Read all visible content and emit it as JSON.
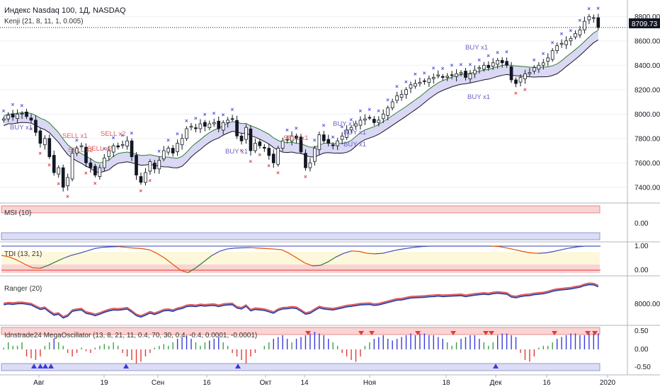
{
  "chart_data": [
    {
      "type": "candlestick",
      "title": "Индекс Nasdaq 100, 1Д, NASDAQ",
      "indicator_label": "Kenji (21, 8, 11, 1, 0.005)",
      "last_price": "8709.73",
      "y_ticks": [
        "8800.00",
        "8600.00",
        "8400.00",
        "8200.00",
        "8000.00",
        "7800.00",
        "7600.00",
        "7400.00"
      ],
      "y_tick_values": [
        8800,
        8600,
        8400,
        8200,
        8000,
        7800,
        7600,
        7400
      ],
      "ylim": [
        7300,
        8900
      ],
      "close": [
        7960,
        7990,
        7975,
        8000,
        8005,
        7980,
        7950,
        7850,
        7760,
        7800,
        7650,
        7520,
        7560,
        7400,
        7480,
        7680,
        7720,
        7740,
        7600,
        7560,
        7500,
        7560,
        7640,
        7700,
        7740,
        7730,
        7750,
        7780,
        7650,
        7500,
        7440,
        7520,
        7610,
        7550,
        7620,
        7700,
        7720,
        7680,
        7760,
        7800,
        7880,
        7900,
        7880,
        7920,
        7900,
        7920,
        7930,
        7880,
        7930,
        7950,
        7960,
        7820,
        7780,
        7890,
        7700,
        7760,
        7740,
        7720,
        7660,
        7600,
        7720,
        7780,
        7790,
        7820,
        7800,
        7690,
        7560,
        7600,
        7720,
        7830,
        7780,
        7760,
        7740,
        7780,
        7820,
        7870,
        7890,
        7920,
        7950,
        7960,
        7970,
        7930,
        7950,
        8000,
        8050,
        8100,
        8150,
        8160,
        8200,
        8240,
        8250,
        8260,
        8270,
        8290,
        8300,
        8320,
        8300,
        8310,
        8320,
        8330,
        8340,
        8300,
        8330,
        8360,
        8380,
        8400,
        8380,
        8420,
        8440,
        8420,
        8400,
        8280,
        8250,
        8300,
        8330,
        8340,
        8380,
        8400,
        8420,
        8460,
        8520,
        8560,
        8580,
        8600,
        8620,
        8660,
        8690,
        8760,
        8800,
        8790,
        8709.73
      ],
      "annotations": [
        "SELL x1",
        "SELL x2",
        "SELL x2",
        "SELL x2",
        "SELL x1",
        "BUY x1",
        "BUY x1",
        "BUY x1",
        "BUY x1",
        "BUY x1",
        "BUY x1",
        "BUY x1"
      ]
    },
    {
      "type": "line",
      "title": "MSI (10)",
      "y_ticks": [
        "0.00"
      ]
    },
    {
      "type": "line",
      "title": "TDI (13, 21)",
      "y_ticks": [
        "1.00",
        "0.00"
      ],
      "values": [
        0.62,
        0.55,
        0.42,
        0.25,
        0.1,
        0.08,
        0.2,
        0.35,
        0.5,
        0.62,
        0.7,
        0.8,
        0.9,
        0.95,
        0.97,
        0.98,
        0.95,
        0.92,
        0.9,
        0.85,
        0.7,
        0.5,
        0.25,
        0.0,
        -0.1,
        0.1,
        0.35,
        0.6,
        0.78,
        0.88,
        0.92,
        0.93,
        0.94,
        0.92,
        0.9,
        0.88,
        0.85,
        0.7,
        0.5,
        0.3,
        0.18,
        0.2,
        0.35,
        0.55,
        0.7,
        0.8,
        0.78,
        0.7,
        0.68,
        0.7,
        0.78,
        0.85,
        0.9,
        0.95,
        0.98,
        1.0,
        1.0,
        1.0,
        1.0,
        1.0,
        1.0,
        1.0,
        1.0,
        1.0,
        0.98,
        0.92,
        0.85,
        0.78,
        0.72,
        0.7,
        0.72,
        0.78,
        0.85,
        0.92,
        0.97,
        1.0,
        1.0,
        1.0
      ]
    },
    {
      "type": "line",
      "title": "Ranger (20)",
      "y_ticks": [
        "8000.00"
      ]
    },
    {
      "type": "bar",
      "title": "Idnstrade24 MegaOscillator (13, 8, 21, 11, 0.4, 70, 30, 0.4, -0.4, 0.0001, -0.0001)",
      "y_ticks": [
        "0.50",
        "0.00",
        "-0.50"
      ],
      "values": [
        0.05,
        0.2,
        0.1,
        0.1,
        0.2,
        -0.2,
        -0.25,
        -0.3,
        -0.2,
        0.1,
        0.2,
        0.3,
        0.2,
        0.1,
        -0.1,
        -0.2,
        -0.1,
        0.05,
        -0.05,
        -0.1,
        0.05,
        0.1,
        0.15,
        0.1,
        0.2,
        0.1,
        -0.1,
        -0.2,
        -0.3,
        -0.4,
        -0.35,
        -0.2,
        -0.1,
        0.05,
        0.1,
        0.15,
        0.1,
        0.2,
        0.3,
        0.35,
        0.4,
        0.3,
        0.2,
        0.1,
        0.2,
        0.25,
        0.3,
        0.35,
        0.2,
        0.1,
        -0.1,
        -0.2,
        -0.3,
        -0.4,
        -0.2,
        -0.1,
        0.0,
        0.1,
        0.2,
        0.3,
        0.35,
        0.4,
        0.3,
        0.2,
        0.3,
        0.35,
        0.4,
        0.45,
        0.5,
        0.45,
        0.4,
        0.3,
        0.2,
        0.1,
        -0.1,
        -0.2,
        -0.3,
        -0.35,
        -0.2,
        0.1,
        0.2,
        0.3,
        0.35,
        0.4,
        0.3,
        0.25,
        0.3,
        0.35,
        0.4,
        0.45,
        0.4,
        0.45,
        0.45,
        0.4,
        0.4,
        0.35,
        0.3,
        0.2,
        0.1,
        0.2,
        0.3,
        0.35,
        0.4,
        0.4,
        0.3,
        0.2,
        0.1,
        0.2,
        0.4,
        0.45,
        0.45,
        0.4,
        0.35,
        -0.1,
        -0.3,
        -0.35,
        -0.2,
        0.05,
        0.1,
        0.1,
        0.2,
        0.3,
        0.35,
        0.4,
        0.45,
        0.45,
        0.4,
        0.4,
        0.45,
        0.45,
        0.45
      ]
    }
  ],
  "x_axis": {
    "labels": [
      "Авг",
      "19",
      "Сен",
      "16",
      "Окт",
      "14",
      "Ноя",
      "18",
      "Дек",
      "16",
      "2020"
    ]
  },
  "colors": {
    "bull": "#ffffff",
    "bear": "#131722",
    "band_fill": "#d6d4f3",
    "band_line": "#131722",
    "buy": "#6c63c7",
    "sell": "#e05a5a",
    "cross_up": "#4a44d6",
    "cross_down": "#e0393e",
    "osc_pos": "#3b3bdc",
    "osc_neg": "#e53935",
    "red_zone": "#f9d4d4",
    "blue_zone": "#dcdcf4"
  }
}
